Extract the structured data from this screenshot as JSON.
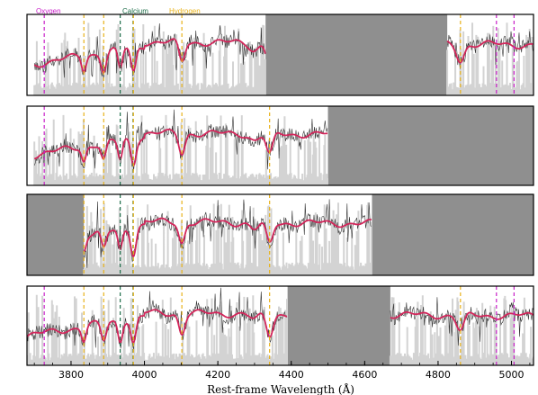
{
  "chart_data": {
    "type": "line",
    "xlabel": "Rest-frame Wavelength (Å)",
    "xlim": [
      3680,
      5060
    ],
    "xticks": [
      "3800",
      "4000",
      "4200",
      "4400",
      "4600",
      "4800",
      "5000"
    ],
    "legend": [
      {
        "label": "Oxygen",
        "color": "#c81fc8"
      },
      {
        "label": "Calcium",
        "color": "#1f6e4a"
      },
      {
        "label": "Hydrogen",
        "color": "#e8b21a"
      }
    ],
    "line_markers": [
      {
        "species": "Oxygen",
        "wavelengths": [
          3727,
          4959,
          5007
        ]
      },
      {
        "species": "Calcium",
        "wavelengths": [
          3934,
          3969
        ]
      },
      {
        "species": "Hydrogen",
        "wavelengths": [
          3835,
          3889,
          3970,
          4102,
          4341,
          4861
        ]
      }
    ],
    "panels": [
      {
        "data_ranges": [
          [
            3700,
            4330
          ],
          [
            4825,
            5060
          ]
        ],
        "masked": [
          [
            4330,
            4825
          ]
        ]
      },
      {
        "data_ranges": [
          [
            3700,
            4500
          ]
        ],
        "masked": [
          [
            4500,
            5060
          ]
        ]
      },
      {
        "data_ranges": [
          [
            3835,
            4620
          ]
        ],
        "masked": [
          [
            3680,
            3835
          ],
          [
            4620,
            5060
          ]
        ]
      },
      {
        "data_ranges": [
          [
            3680,
            4390
          ],
          [
            4670,
            5060
          ]
        ],
        "masked": [
          [
            4390,
            4670
          ]
        ]
      }
    ],
    "series": [
      {
        "name": "",
        "color": "#333333"
      },
      {
        "name": "",
        "color": "#d3265b"
      },
      {
        "name": "",
        "color": "#d3d3d3"
      }
    ]
  }
}
